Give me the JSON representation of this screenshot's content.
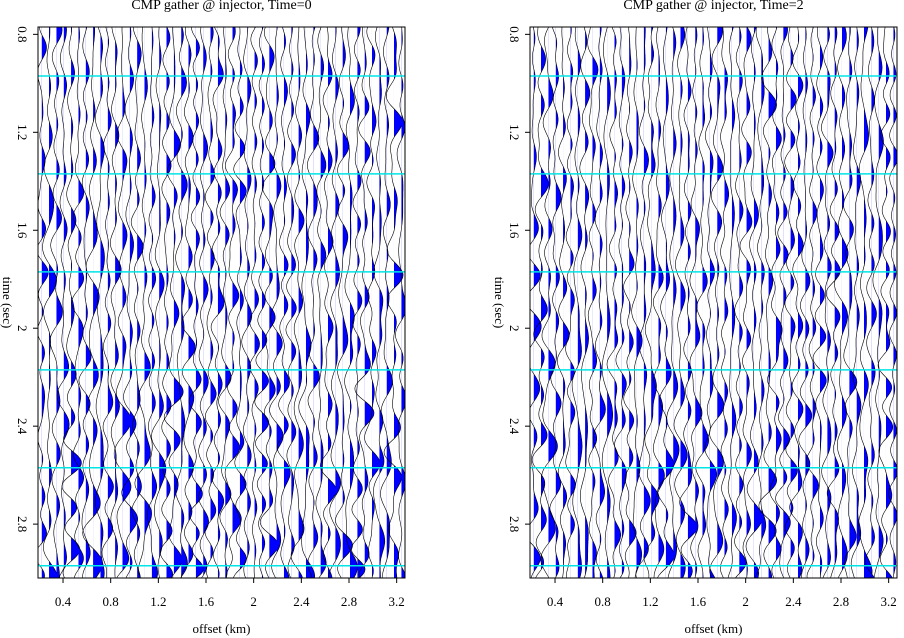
{
  "chart_data": [
    {
      "type": "wiggle",
      "title": "CMP gather @ injector, Time=0",
      "xlabel": "offset (km)",
      "ylabel": "time (sec)",
      "xlim": [
        0.19,
        3.27
      ],
      "ylim": [
        3.02,
        0.77
      ],
      "xticks": [
        0.4,
        0.8,
        1.2,
        1.6,
        2,
        2.4,
        2.8,
        3.2
      ],
      "yticks": [
        0.8,
        1.2,
        1.6,
        2,
        2.4,
        2.8
      ],
      "marker_lines": [
        0.97,
        1.37,
        1.77,
        2.17,
        2.57,
        2.97
      ],
      "marker_color": "#00e5e5",
      "fill_color": "#0000ff"
    },
    {
      "type": "wiggle",
      "title": "CMP gather @ injector, Time=2",
      "xlabel": "offset (km)",
      "ylabel": "time (sec)",
      "xlim": [
        0.19,
        3.27
      ],
      "ylim": [
        3.02,
        0.77
      ],
      "xticks": [
        0.4,
        0.8,
        1.2,
        1.6,
        2,
        2.4,
        2.8,
        3.2
      ],
      "yticks": [
        0.8,
        1.2,
        1.6,
        2,
        2.4,
        2.8
      ],
      "marker_lines": [
        0.97,
        1.37,
        1.77,
        2.17,
        2.57,
        2.97
      ],
      "marker_color": "#00e5e5",
      "fill_color": "#0000ff"
    }
  ]
}
